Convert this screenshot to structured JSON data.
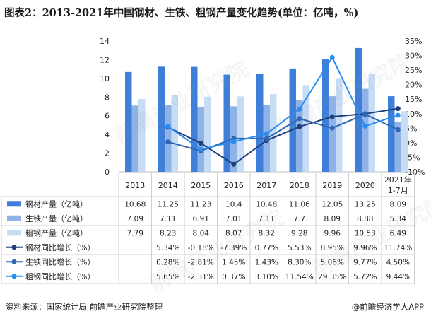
{
  "title": "图表2：2013-2021年中国钢材、生铁、粗钢产量变化趋势(单位：亿吨，%)",
  "source": "资料来源：国家统计局 前瞻产业研究院整理",
  "logo": "@前瞻经济学人APP",
  "watermark": "前瞻产业研究院",
  "colors": {
    "steel_material": "#3f7fd9",
    "pig_iron": "#8fb3e6",
    "crude_steel": "#c7dcf5",
    "steel_material_growth": "#1f3f7a",
    "pig_iron_growth": "#2e66b2",
    "crude_steel_growth": "#2a8cf0"
  },
  "chart_data": {
    "type": "bar",
    "categories": [
      "2013",
      "2014",
      "2015",
      "2016",
      "2017",
      "2018",
      "2019",
      "2020",
      "2021年 1-7月"
    ],
    "left_axis": {
      "ylim": [
        0,
        14
      ],
      "ticks": [
        "0",
        "2",
        "4",
        "6",
        "8",
        "10",
        "12",
        "14"
      ]
    },
    "right_axis": {
      "ylim": [
        -10,
        35
      ],
      "ticks": [
        "-10%",
        "-5%",
        "0%",
        "5%",
        "10%",
        "15%",
        "20%",
        "25%",
        "30%",
        "35%"
      ]
    },
    "series": [
      {
        "name": "钢材产量（亿吨）",
        "type": "bar",
        "axis": "left",
        "values": [
          10.68,
          11.25,
          11.23,
          10.4,
          10.48,
          11.06,
          12.05,
          13.25,
          8.09
        ],
        "labels": [
          "10.68",
          "11.25",
          "11.23",
          "10.4",
          "10.48",
          "11.06",
          "12.05",
          "13.25",
          "8.09"
        ]
      },
      {
        "name": "生铁产量（亿吨）",
        "type": "bar",
        "axis": "left",
        "values": [
          7.09,
          7.11,
          6.91,
          7.01,
          7.11,
          7.7,
          8.09,
          8.88,
          5.34
        ],
        "labels": [
          "7.09",
          "7.11",
          "6.91",
          "7.01",
          "7.11",
          "7.7",
          "8.09",
          "8.88",
          "5.34"
        ]
      },
      {
        "name": "粗钢产量（亿吨）",
        "type": "bar",
        "axis": "left",
        "values": [
          7.79,
          8.23,
          8.04,
          8.07,
          8.32,
          9.28,
          9.96,
          10.53,
          6.49
        ],
        "labels": [
          "7.79",
          "8.23",
          "8.04",
          "8.07",
          "8.32",
          "9.28",
          "9.96",
          "10.53",
          "6.49"
        ]
      },
      {
        "name": "钢材同比增长（%）",
        "type": "line",
        "axis": "right",
        "values": [
          null,
          5.34,
          -0.18,
          -7.39,
          0.77,
          5.53,
          8.95,
          9.96,
          11.74
        ],
        "labels": [
          "",
          "5.34%",
          "-0.18%",
          "-7.39%",
          "0.77%",
          "5.53%",
          "8.95%",
          "9.96%",
          "11.74%"
        ]
      },
      {
        "name": "生铁同比增长（%）",
        "type": "line",
        "axis": "right",
        "values": [
          null,
          0.28,
          -2.81,
          1.45,
          1.43,
          8.3,
          5.06,
          9.77,
          4.5
        ],
        "labels": [
          "",
          "0.28%",
          "-2.81%",
          "1.45%",
          "1.43%",
          "8.30%",
          "5.06%",
          "9.77%",
          "4.50%"
        ]
      },
      {
        "name": "粗钢同比增长（%）",
        "type": "line",
        "axis": "right",
        "values": [
          null,
          5.65,
          -2.31,
          0.37,
          3.1,
          11.54,
          29.35,
          5.72,
          9.44
        ],
        "labels": [
          "",
          "5.65%",
          "-2.31%",
          "0.37%",
          "3.10%",
          "11.54%",
          "29.35%",
          "5.72%",
          "9.44%"
        ]
      }
    ],
    "legend": "data table below chart",
    "grid": false
  }
}
